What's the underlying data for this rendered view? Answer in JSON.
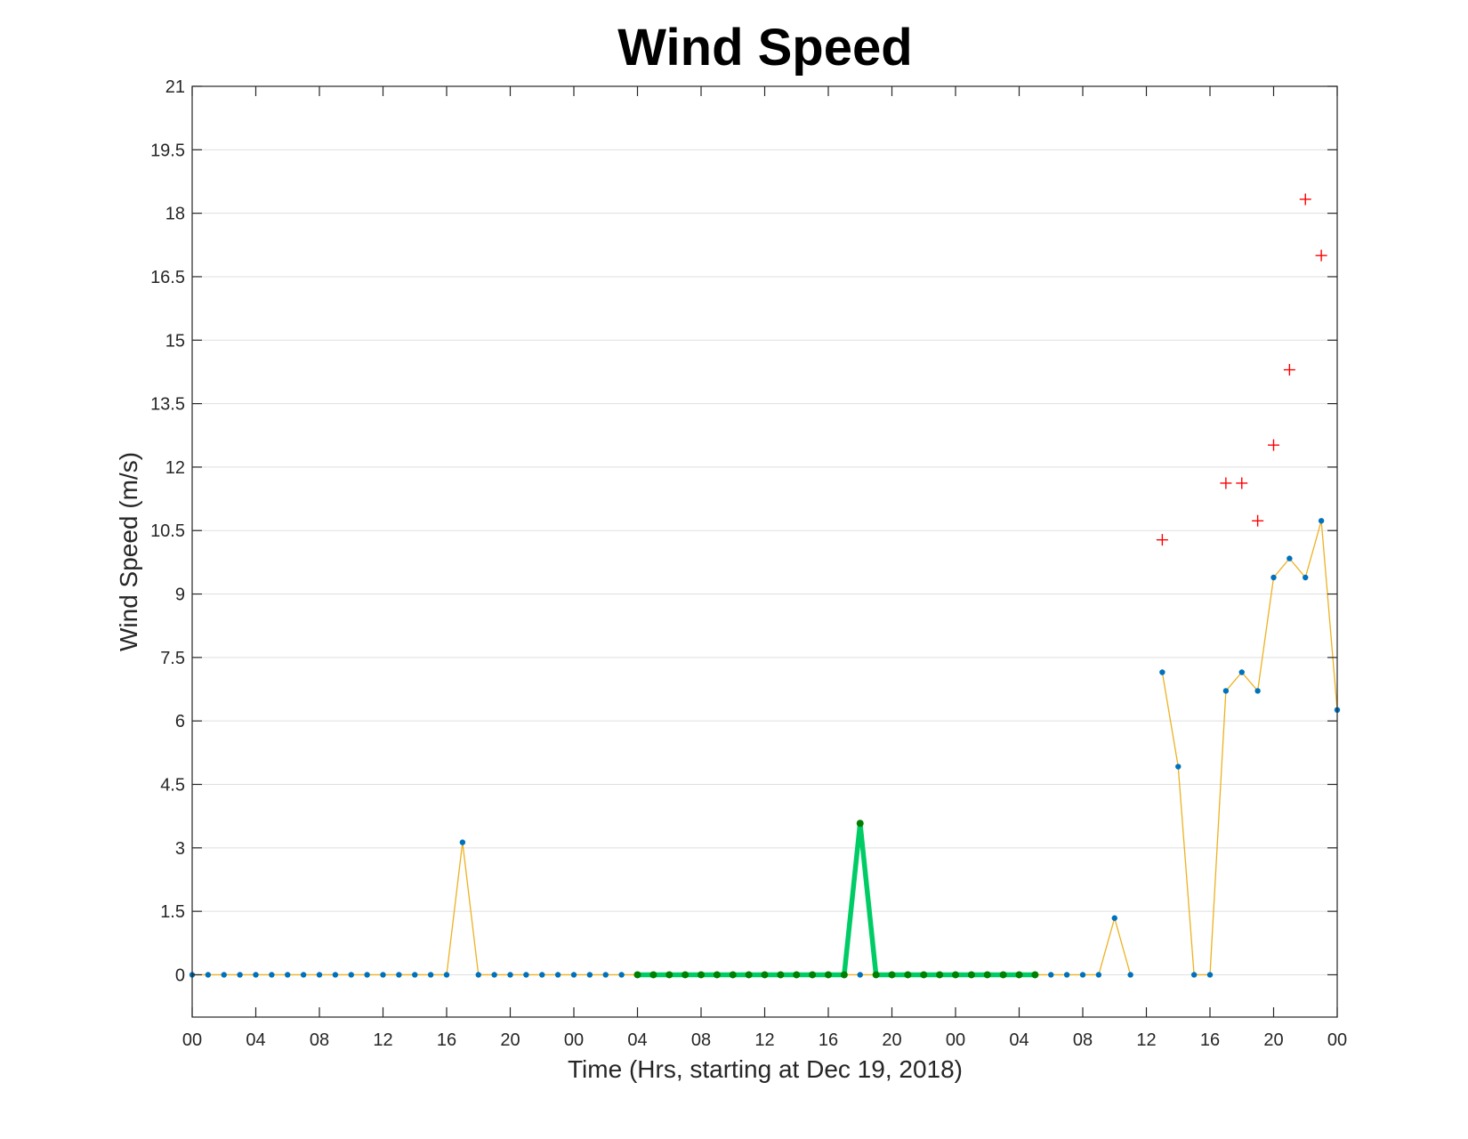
{
  "chart_data": {
    "type": "line",
    "title": "Wind Speed",
    "xlabel": "Time (Hrs, starting at Dec 19, 2018)",
    "ylabel": "Wind Speed (m/s)",
    "ylim": [
      -1,
      21
    ],
    "xlim": [
      0,
      72
    ],
    "grid": "horizontal",
    "yticks": [
      "0",
      "1.5",
      "3",
      "4.5",
      "6",
      "7.5",
      "9",
      "10.5",
      "12",
      "13.5",
      "15",
      "16.5",
      "18",
      "19.5",
      "21"
    ],
    "xticks": [
      {
        "x": 0,
        "label": "00"
      },
      {
        "x": 4,
        "label": "04"
      },
      {
        "x": 8,
        "label": "08"
      },
      {
        "x": 12,
        "label": "12"
      },
      {
        "x": 16,
        "label": "16"
      },
      {
        "x": 20,
        "label": "20"
      },
      {
        "x": 24,
        "label": "00"
      },
      {
        "x": 28,
        "label": "04"
      },
      {
        "x": 32,
        "label": "08"
      },
      {
        "x": 36,
        "label": "12"
      },
      {
        "x": 40,
        "label": "16"
      },
      {
        "x": 44,
        "label": "20"
      },
      {
        "x": 48,
        "label": "00"
      },
      {
        "x": 52,
        "label": "04"
      },
      {
        "x": 56,
        "label": "08"
      },
      {
        "x": 60,
        "label": "12"
      },
      {
        "x": 64,
        "label": "16"
      },
      {
        "x": 68,
        "label": "20"
      },
      {
        "x": 72,
        "label": "00"
      }
    ],
    "series": [
      {
        "role": "hourly-wind",
        "color": "#edb120",
        "marker_color": "#0072bd",
        "segments": [
          {
            "x": [
              0,
              1,
              2,
              3,
              4,
              5,
              6,
              7,
              8,
              9,
              10,
              11,
              12,
              13,
              14,
              15,
              16,
              17,
              18,
              19,
              20,
              21,
              22,
              23,
              24,
              25,
              26,
              27,
              28,
              29,
              30,
              31,
              32,
              33,
              34,
              35,
              36,
              37,
              38,
              39,
              40,
              41,
              42,
              43,
              44,
              45,
              46,
              47,
              48,
              49,
              50,
              51,
              52,
              53,
              54,
              55,
              56,
              57,
              58,
              59
            ],
            "y": [
              0,
              0,
              0,
              0,
              0,
              0,
              0,
              0,
              0,
              0,
              0,
              0,
              0,
              0,
              0,
              0,
              0,
              3.13,
              0,
              0,
              0,
              0,
              0,
              0,
              0,
              0,
              0,
              0,
              0,
              0,
              0,
              0,
              0,
              0,
              0,
              0,
              0,
              0,
              0,
              0,
              0,
              0,
              0,
              0,
              0,
              0,
              0,
              0,
              0,
              0,
              0,
              0,
              0,
              0,
              0,
              0,
              0,
              0,
              1.34,
              0
            ]
          },
          {
            "x": [
              61,
              62,
              63,
              64,
              65,
              66,
              67,
              68,
              69,
              70,
              71,
              72
            ],
            "y": [
              7.15,
              4.92,
              0,
              0,
              6.71,
              7.15,
              6.71,
              9.39,
              9.84,
              9.39,
              10.73,
              6.26
            ]
          }
        ]
      },
      {
        "role": "highlight",
        "color": "#00cc66",
        "marker_color": "#008000",
        "segments": [
          {
            "x": [
              28,
              29,
              30,
              31,
              32,
              33,
              34,
              35,
              36,
              37,
              38,
              39,
              40,
              41,
              42,
              43,
              44,
              45,
              46,
              47,
              48,
              49,
              50,
              51,
              52,
              53
            ],
            "y": [
              0,
              0,
              0,
              0,
              0,
              0,
              0,
              0,
              0,
              0,
              0,
              0,
              0,
              0,
              3.58,
              0,
              0,
              0,
              0,
              0,
              0,
              0,
              0,
              0,
              0,
              0
            ]
          }
        ]
      },
      {
        "role": "gust",
        "color": "#ff0000",
        "marker": "plus",
        "x": [
          61,
          65,
          66,
          67,
          68,
          69,
          70,
          71
        ],
        "y": [
          10.28,
          11.62,
          11.62,
          10.73,
          12.52,
          14.3,
          18.33,
          17.0
        ]
      }
    ]
  }
}
